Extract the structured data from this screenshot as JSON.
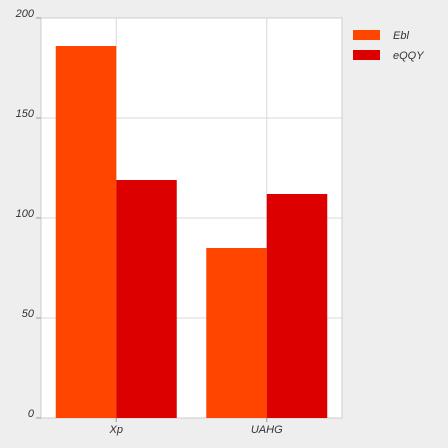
{
  "chart_data": {
    "type": "bar",
    "categories": [
      "Xp",
      "UAHG"
    ],
    "series": [
      {
        "name": "Ebl",
        "color": "#ff4500",
        "values": [
          186,
          85
        ]
      },
      {
        "name": "eQQY",
        "color": "#dd0000",
        "values": [
          119,
          112
        ]
      }
    ],
    "ylim": [
      0,
      200
    ],
    "yticks": [
      0,
      50,
      100,
      150,
      200
    ],
    "grid": true,
    "legend_position": "top-right",
    "title": "",
    "xlabel": "",
    "ylabel": ""
  }
}
